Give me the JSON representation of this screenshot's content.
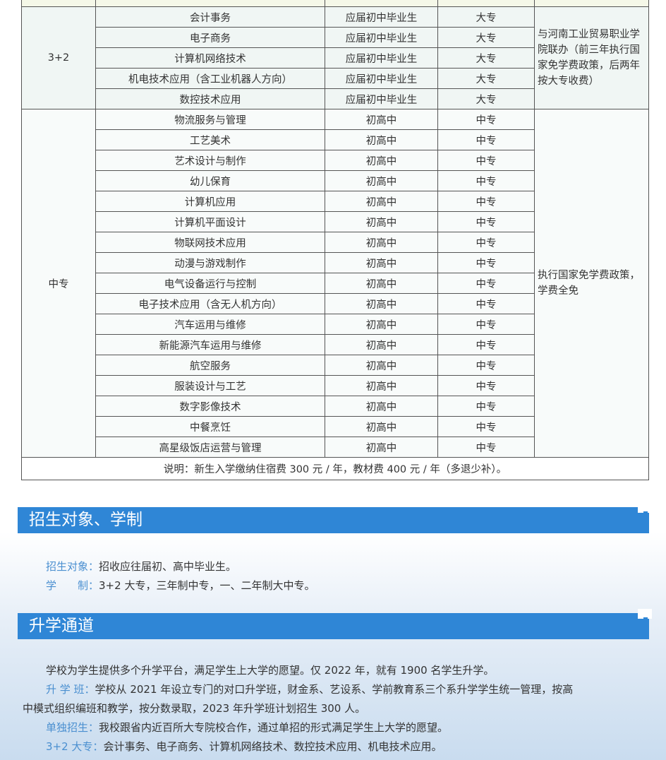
{
  "table": {
    "groups": [
      {
        "category": "3+2",
        "note": "与河南工业贸易职业学院联办（前三年执行国家免学费政策，后两年按大专收费）",
        "rows": [
          {
            "major": "会计事务",
            "target": "应届初中毕业生",
            "level": "大专"
          },
          {
            "major": "电子商务",
            "target": "应届初中毕业生",
            "level": "大专"
          },
          {
            "major": "计算机网络技术",
            "target": "应届初中毕业生",
            "level": "大专"
          },
          {
            "major": "机电技术应用（含工业机器人方向）",
            "target": "应届初中毕业生",
            "level": "大专"
          },
          {
            "major": "数控技术应用",
            "target": "应届初中毕业生",
            "level": "大专"
          }
        ]
      },
      {
        "category": "中专",
        "note": "执行国家免学费政策，学费全免",
        "rows": [
          {
            "major": "物流服务与管理",
            "target": "初高中",
            "level": "中专"
          },
          {
            "major": "工艺美术",
            "target": "初高中",
            "level": "中专"
          },
          {
            "major": "艺术设计与制作",
            "target": "初高中",
            "level": "中专"
          },
          {
            "major": "幼儿保育",
            "target": "初高中",
            "level": "中专"
          },
          {
            "major": "计算机应用",
            "target": "初高中",
            "level": "中专"
          },
          {
            "major": "计算机平面设计",
            "target": "初高中",
            "level": "中专"
          },
          {
            "major": "物联网技术应用",
            "target": "初高中",
            "level": "中专"
          },
          {
            "major": "动漫与游戏制作",
            "target": "初高中",
            "level": "中专"
          },
          {
            "major": "电气设备运行与控制",
            "target": "初高中",
            "level": "中专"
          },
          {
            "major": "电子技术应用（含无人机方向）",
            "target": "初高中",
            "level": "中专"
          },
          {
            "major": "汽车运用与维修",
            "target": "初高中",
            "level": "中专"
          },
          {
            "major": "新能源汽车运用与维修",
            "target": "初高中",
            "level": "中专"
          },
          {
            "major": "航空服务",
            "target": "初高中",
            "level": "中专"
          },
          {
            "major": "服装设计与工艺",
            "target": "初高中",
            "level": "中专"
          },
          {
            "major": "数字影像技术",
            "target": "初高中",
            "level": "中专"
          },
          {
            "major": "中餐烹饪",
            "target": "初高中",
            "level": "中专"
          },
          {
            "major": "高星级饭店运营与管理",
            "target": "初高中",
            "level": "中专"
          }
        ]
      }
    ],
    "footnote": "说明：新生入学缴纳住宿费 300 元 / 年，教材费 400 元 / 年（多退少补）。"
  },
  "section1": {
    "title": "招生对象、学制",
    "items": [
      {
        "label": "招生对象：",
        "text": "招收应往届初、高中毕业生。"
      },
      {
        "label": "学　　制：",
        "text": "3+2 大专，三年制中专，一、二年制大中专。"
      }
    ]
  },
  "section2": {
    "title": "升学通道",
    "intro": "学校为学生提供多个升学平台，满足学生上大学的愿望。仅 2022 年，就有 1900 名学生升学。",
    "items": [
      {
        "label": "升 学 班：",
        "text": "学校从 2021 年设立专门的对口升学班，财金系、艺设系、学前教育系三个系升学学生统一管理，按高",
        "cont": "中模式组织编班和教学，按分数录取，2023 年升学班计划招生 300 人。"
      },
      {
        "label": "单独招生：",
        "text": "我校跟省内近百所大专院校合作，通过单招的形式满足学生上大学的愿望。"
      },
      {
        "label": "3+2 大专：",
        "text": "会计事务、电子商务、计算机网络技术、数控技术应用、机电技术应用。"
      }
    ]
  },
  "colors": {
    "header_bar": "#2f86d6",
    "label": "#4a8fd0"
  }
}
